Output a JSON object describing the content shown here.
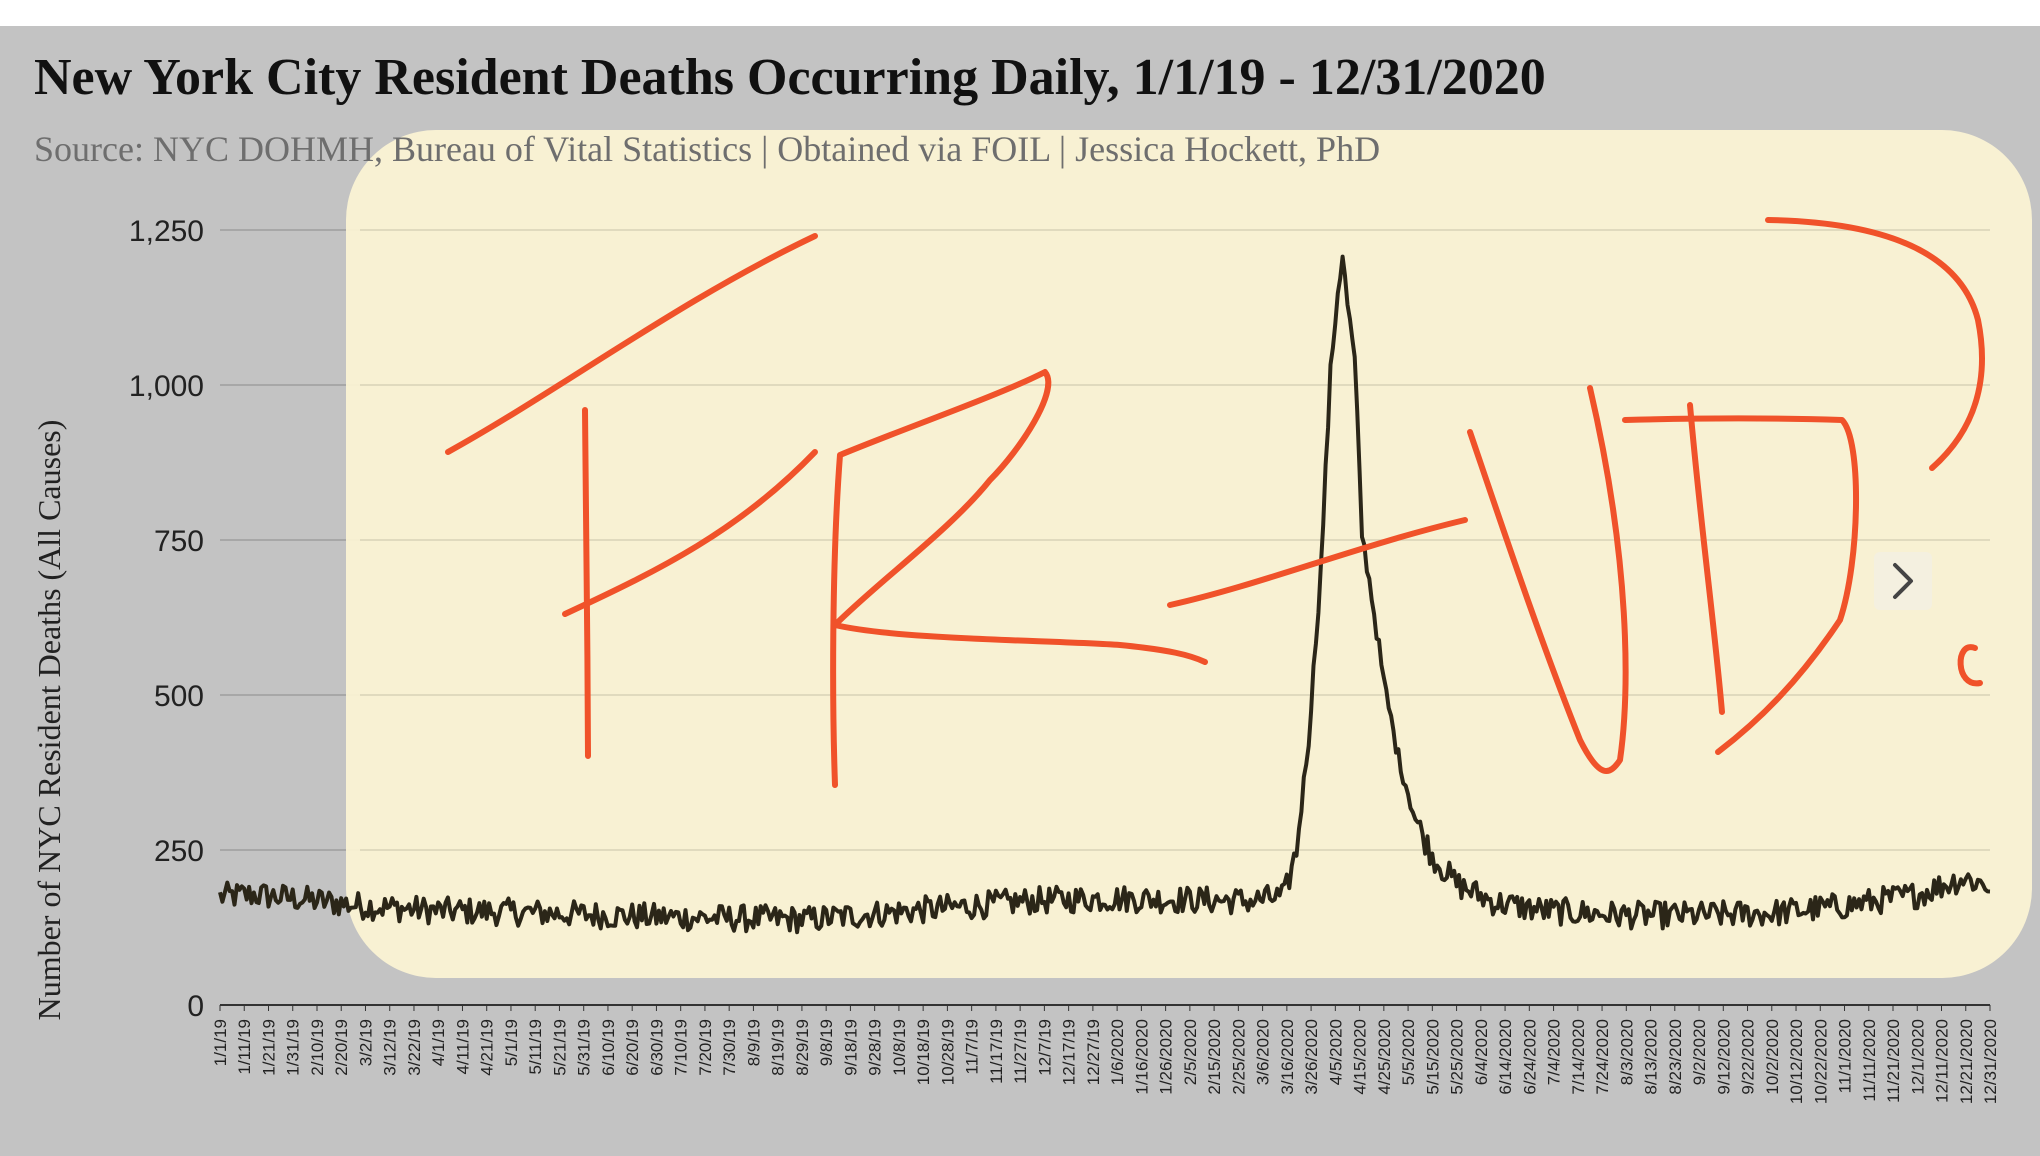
{
  "chart_data": {
    "type": "line",
    "title": "New York City Resident Deaths Occurring Daily, 1/1/19 - 12/31/2020",
    "subtitle": "Source: NYC DOHMH, Bureau of Vital Statistics | Obtained via FOIL | Jessica Hockett, PhD",
    "xlabel": "",
    "ylabel": "Number of NYC Resident Deaths (All Causes)",
    "ylim": [
      0,
      1250
    ],
    "yticks": [
      0,
      250,
      500,
      750,
      1000,
      1250
    ],
    "ytick_labels": [
      "0",
      "250",
      "500",
      "750",
      "1,000",
      "1,250"
    ],
    "grid": true,
    "x_range": [
      "1/1/19",
      "12/31/2020"
    ],
    "x_tick_labels": [
      "1/1/19",
      "1/11/19",
      "1/21/19",
      "1/31/19",
      "2/10/19",
      "2/20/19",
      "3/2/19",
      "3/12/19",
      "3/22/19",
      "4/1/19",
      "4/11/19",
      "4/21/19",
      "5/1/19",
      "5/11/19",
      "5/21/19",
      "5/31/19",
      "6/10/19",
      "6/20/19",
      "6/30/19",
      "7/10/19",
      "7/20/19",
      "7/30/19",
      "8/9/19",
      "8/19/19",
      "8/29/19",
      "9/8/19",
      "9/18/19",
      "9/28/19",
      "10/8/19",
      "10/18/19",
      "10/28/19",
      "11/7/19",
      "11/17/19",
      "11/27/19",
      "12/7/19",
      "12/17/19",
      "12/27/19",
      "1/6/2020",
      "1/16/2020",
      "1/26/2020",
      "2/5/2020",
      "2/15/2020",
      "2/25/2020",
      "3/6/2020",
      "3/16/2020",
      "3/26/2020",
      "4/5/2020",
      "4/15/2020",
      "4/25/2020",
      "5/5/2020",
      "5/15/2020",
      "5/25/2020",
      "6/4/2020",
      "6/14/2020",
      "6/24/2020",
      "7/4/2020",
      "7/14/2020",
      "7/24/2020",
      "8/3/2020",
      "8/13/2020",
      "8/23/2020",
      "9/2/2020",
      "9/12/2020",
      "9/22/2020",
      "10/2/2020",
      "10/12/2020",
      "10/22/2020",
      "11/1/2020",
      "11/11/2020",
      "11/21/2020",
      "12/1/2020",
      "12/11/2020",
      "12/21/2020",
      "12/31/2020"
    ],
    "series": [
      {
        "color": "#2b2618",
        "points": [
          [
            "1/1/19",
            175
          ],
          [
            "1/15/19",
            178
          ],
          [
            "2/1/19",
            172
          ],
          [
            "3/1/19",
            160
          ],
          [
            "4/1/19",
            152
          ],
          [
            "5/1/19",
            150
          ],
          [
            "6/1/19",
            146
          ],
          [
            "7/1/19",
            142
          ],
          [
            "8/1/19",
            140
          ],
          [
            "9/1/19",
            138
          ],
          [
            "10/1/19",
            148
          ],
          [
            "11/1/19",
            158
          ],
          [
            "12/1/19",
            168
          ],
          [
            "1/1/2020",
            172
          ],
          [
            "2/1/2020",
            170
          ],
          [
            "3/1/2020",
            168
          ],
          [
            "3/15/2020",
            175
          ],
          [
            "3/20/2020",
            250
          ],
          [
            "3/25/2020",
            430
          ],
          [
            "3/30/2020",
            700
          ],
          [
            "4/3/2020",
            1020
          ],
          [
            "4/6/2020",
            1150
          ],
          [
            "4/8/2020",
            1210
          ],
          [
            "4/10/2020",
            1130
          ],
          [
            "4/13/2020",
            1040
          ],
          [
            "4/16/2020",
            760
          ],
          [
            "4/20/2020",
            660
          ],
          [
            "4/25/2020",
            520
          ],
          [
            "5/1/2020",
            400
          ],
          [
            "5/8/2020",
            300
          ],
          [
            "5/15/2020",
            240
          ],
          [
            "5/25/2020",
            195
          ],
          [
            "6/10/2020",
            165
          ],
          [
            "7/1/2020",
            152
          ],
          [
            "8/1/2020",
            145
          ],
          [
            "9/1/2020",
            145
          ],
          [
            "10/1/2020",
            148
          ],
          [
            "11/1/2020",
            160
          ],
          [
            "12/1/2020",
            178
          ],
          [
            "12/20/2020",
            205
          ],
          [
            "12/31/2020",
            192
          ]
        ]
      }
    ]
  },
  "annotation": {
    "text": "FRAUD"
  },
  "nav": {
    "next_icon": "chevron-right-icon"
  }
}
